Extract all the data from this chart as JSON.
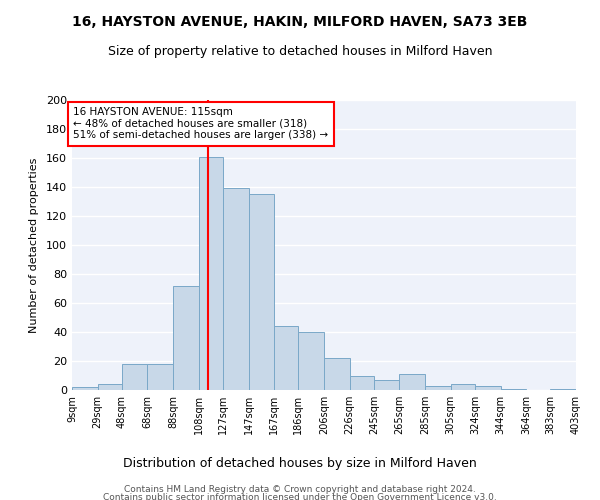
{
  "title": "16, HAYSTON AVENUE, HAKIN, MILFORD HAVEN, SA73 3EB",
  "subtitle": "Size of property relative to detached houses in Milford Haven",
  "xlabel": "Distribution of detached houses by size in Milford Haven",
  "ylabel": "Number of detached properties",
  "footer_line1": "Contains HM Land Registry data © Crown copyright and database right 2024.",
  "footer_line2": "Contains public sector information licensed under the Open Government Licence v3.0.",
  "property_label": "16 HAYSTON AVENUE: 115sqm",
  "annotation_line1": "← 48% of detached houses are smaller (318)",
  "annotation_line2": "51% of semi-detached houses are larger (338) →",
  "bin_edges": [
    9,
    29,
    48,
    68,
    88,
    108,
    127,
    147,
    167,
    186,
    206,
    226,
    245,
    265,
    285,
    305,
    324,
    344,
    364,
    383,
    403
  ],
  "bin_labels": [
    "9sqm",
    "29sqm",
    "48sqm",
    "68sqm",
    "88sqm",
    "108sqm",
    "127sqm",
    "147sqm",
    "167sqm",
    "186sqm",
    "206sqm",
    "226sqm",
    "245sqm",
    "265sqm",
    "285sqm",
    "305sqm",
    "324sqm",
    "344sqm",
    "364sqm",
    "383sqm",
    "403sqm"
  ],
  "bar_heights": [
    2,
    4,
    18,
    18,
    72,
    161,
    139,
    135,
    44,
    40,
    22,
    10,
    7,
    11,
    3,
    4,
    3,
    1,
    0,
    1
  ],
  "bar_color": "#c8d8e8",
  "bar_edge_color": "#7aa8c8",
  "vline_x": 115,
  "vline_color": "red",
  "background_color": "#eef2fa",
  "ylim": [
    0,
    200
  ],
  "yticks": [
    0,
    20,
    40,
    60,
    80,
    100,
    120,
    140,
    160,
    180,
    200
  ]
}
